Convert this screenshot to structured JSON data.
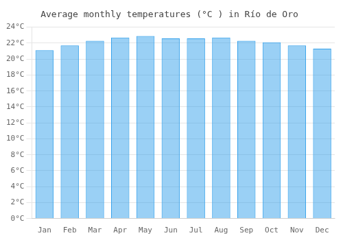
{
  "chart_data": {
    "type": "bar",
    "title": "Average monthly temperatures (°C ) in Río de Oro",
    "categories": [
      "Jan",
      "Feb",
      "Mar",
      "Apr",
      "May",
      "Jun",
      "Jul",
      "Aug",
      "Sep",
      "Oct",
      "Nov",
      "Dec"
    ],
    "values": [
      21.1,
      21.7,
      22.3,
      22.7,
      22.9,
      22.6,
      22.6,
      22.7,
      22.3,
      22.1,
      21.7,
      21.3
    ],
    "ylim": [
      0,
      24
    ],
    "yticks": [
      {
        "value": 0,
        "label": "0°C"
      },
      {
        "value": 2,
        "label": "2°C"
      },
      {
        "value": 4,
        "label": "4°C"
      },
      {
        "value": 6,
        "label": "6°C"
      },
      {
        "value": 8,
        "label": "8°C"
      },
      {
        "value": 10,
        "label": "10°C"
      },
      {
        "value": 12,
        "label": "12°C"
      },
      {
        "value": 14,
        "label": "14°C"
      },
      {
        "value": 16,
        "label": "16°C"
      },
      {
        "value": 18,
        "label": "18°C"
      },
      {
        "value": 20,
        "label": "20°C"
      },
      {
        "value": 22,
        "label": "22°C"
      },
      {
        "value": 24,
        "label": "24°C"
      }
    ],
    "grid": true
  }
}
